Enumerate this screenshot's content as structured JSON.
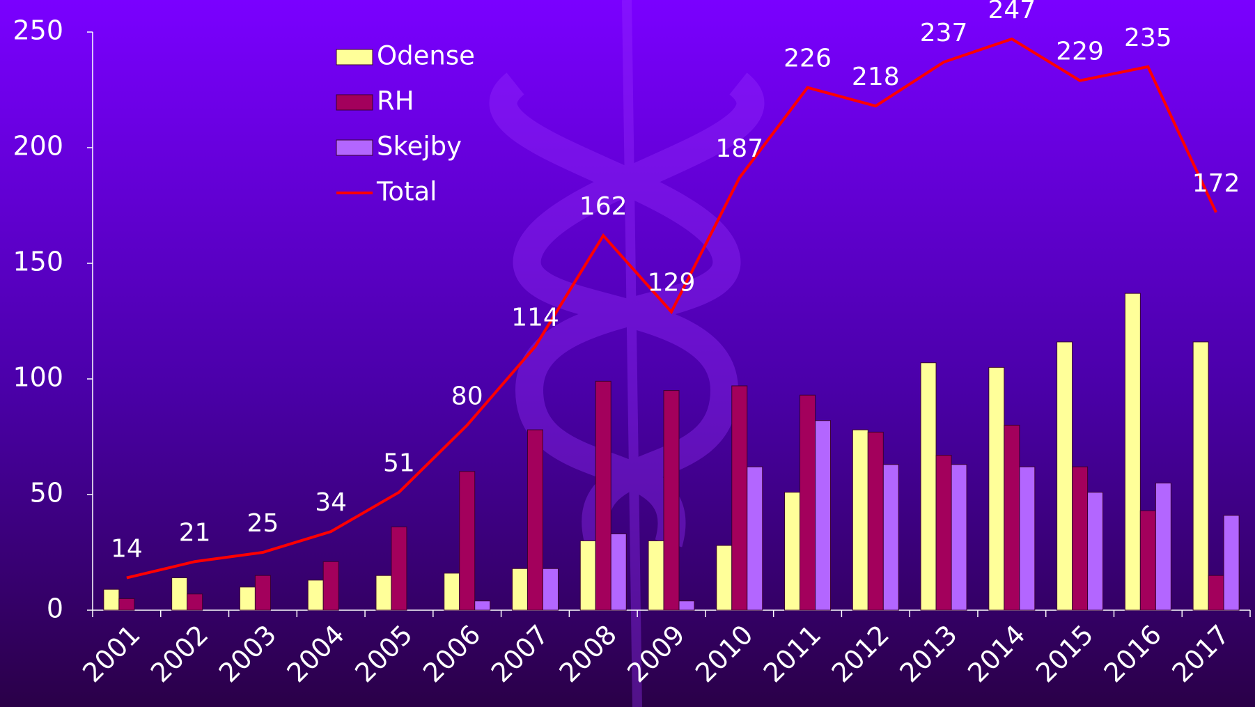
{
  "chart_data": {
    "type": "bar",
    "categories": [
      "2001",
      "2002",
      "2003",
      "2004",
      "2005",
      "2006",
      "2007",
      "2008",
      "2009",
      "2010",
      "2011",
      "2012",
      "2013",
      "2014",
      "2015",
      "2016",
      "2017"
    ],
    "series": [
      {
        "name": "Odense",
        "color": "#ffff99",
        "values": [
          9,
          14,
          10,
          13,
          15,
          16,
          18,
          30,
          30,
          28,
          51,
          78,
          107,
          105,
          116,
          137,
          116
        ]
      },
      {
        "name": "RH",
        "color": "#a3005c",
        "values": [
          5,
          7,
          15,
          21,
          36,
          60,
          78,
          99,
          95,
          97,
          93,
          77,
          67,
          80,
          62,
          43,
          15
        ]
      },
      {
        "name": "Skejby",
        "color": "#b366ff",
        "values": [
          0,
          0,
          0,
          0,
          0,
          4,
          18,
          33,
          4,
          62,
          82,
          63,
          63,
          62,
          51,
          55,
          41
        ]
      },
      {
        "name": "Total",
        "color": "#ff0000",
        "type": "line",
        "values": [
          14,
          21,
          25,
          34,
          51,
          80,
          114,
          162,
          129,
          187,
          226,
          218,
          237,
          247,
          229,
          235,
          172
        ]
      }
    ],
    "ylim": [
      0,
      250
    ],
    "yticks": [
      0,
      50,
      100,
      150,
      200,
      250
    ]
  }
}
